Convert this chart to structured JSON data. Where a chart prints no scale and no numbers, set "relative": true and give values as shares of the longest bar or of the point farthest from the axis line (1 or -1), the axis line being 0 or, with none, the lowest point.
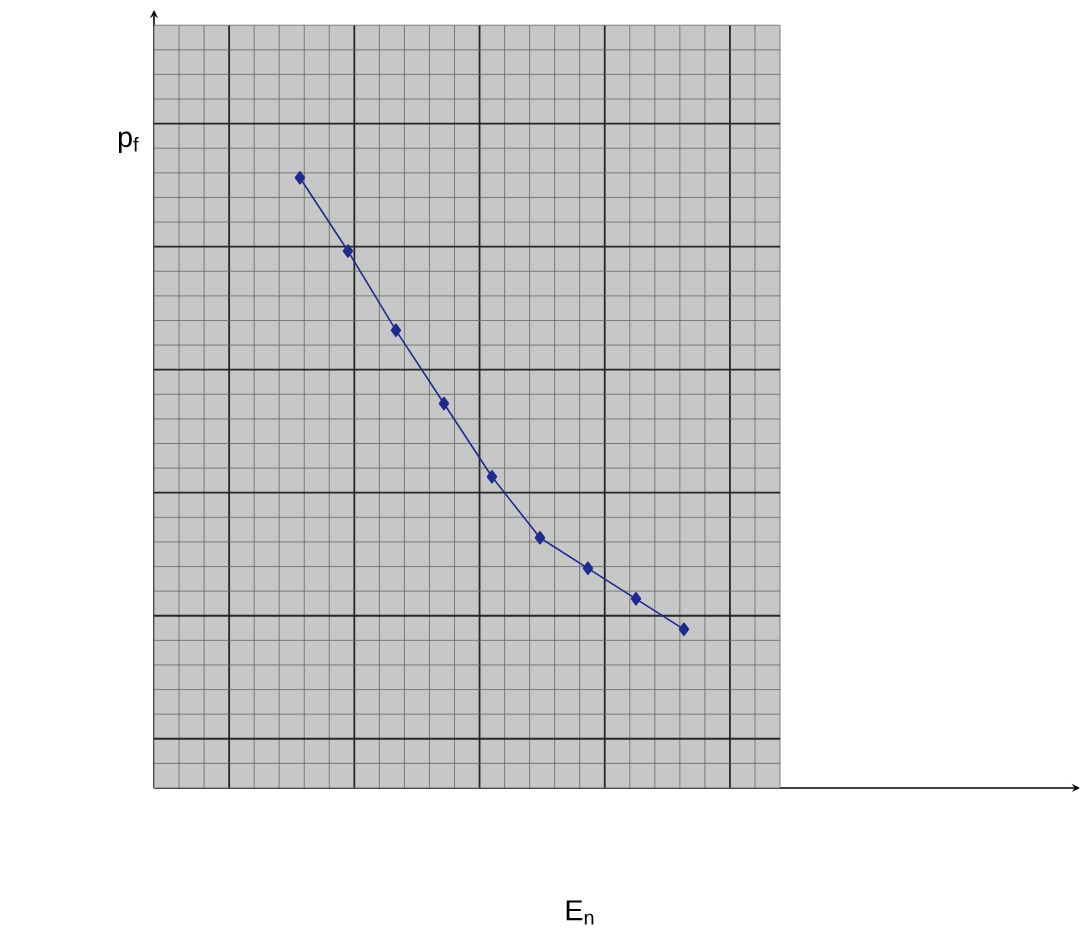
{
  "chart_data": {
    "type": "line",
    "relative": true,
    "xlabel": "E$_{n}$",
    "ylabel": "p$_{f}$",
    "categories": [
      null,
      null,
      null,
      null,
      null,
      null,
      null,
      null,
      null
    ],
    "series": [
      {
        "color": "#1f2a8f",
        "values": [
          1,
          0.88,
          0.75,
          0.63,
          0.51,
          0.41,
          0.36,
          0.31,
          0.26
        ]
      }
    ],
    "marker": "diamond",
    "line_style": "solid",
    "grid": true
  }
}
